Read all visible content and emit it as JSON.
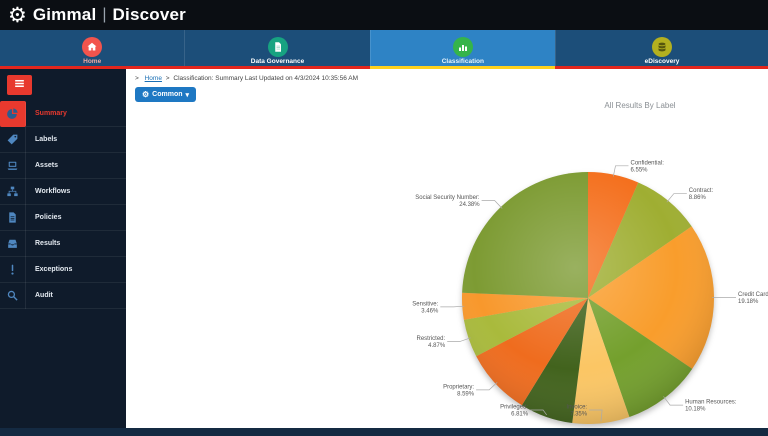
{
  "topbar": {
    "brand_left": "Gimmal",
    "separator": "|",
    "brand_right": "Discover"
  },
  "icons": {
    "gear": "⚙",
    "caret": "▾",
    "crumb_arrow": ">"
  },
  "theme": {
    "topbar_bg": "#0b0e13",
    "nav_bg": "#1c4e79",
    "nav_selected_bg": "#2e83c5",
    "underline_red": "#e3261d",
    "underline_yellow": "#ffd21e",
    "sidebar_bg": "#0f1b2b",
    "accent_red": "#e8392e",
    "button_blue": "#1e78c3"
  },
  "nav": {
    "tabs": [
      {
        "label": "Home",
        "icon": "home-icon",
        "circle_color": "#f2544d",
        "icon_color": "#ffffff",
        "label_color": "#f0a8a1",
        "selected": false
      },
      {
        "label": "Data Governance",
        "icon": "document-icon",
        "circle_color": "#17a381",
        "icon_color": "#ffffff",
        "label_color": "#ffffff",
        "selected": false
      },
      {
        "label": "Classification",
        "icon": "bar-chart-icon",
        "circle_color": "#35b44a",
        "icon_color": "#ffffff",
        "label_color": "#eaf4fb",
        "selected": true
      },
      {
        "label": "eDiscovery",
        "icon": "database-icon",
        "circle_color": "#b3b01f",
        "icon_color": "#56560e",
        "label_color": "#ffffff",
        "selected": false
      }
    ]
  },
  "sidebar": {
    "items": [
      {
        "label": "Summary",
        "icon": "pie-chart-icon",
        "selected": true
      },
      {
        "label": "Labels",
        "icon": "tag-icon",
        "selected": false
      },
      {
        "label": "Assets",
        "icon": "laptop-icon",
        "selected": false
      },
      {
        "label": "Workflows",
        "icon": "sitemap-icon",
        "selected": false
      },
      {
        "label": "Policies",
        "icon": "policy-document-icon",
        "selected": false
      },
      {
        "label": "Results",
        "icon": "inbox-icon",
        "selected": false
      },
      {
        "label": "Exceptions",
        "icon": "exclamation-icon",
        "selected": false
      },
      {
        "label": "Audit",
        "icon": "search-icon",
        "selected": false
      }
    ]
  },
  "breadcrumb": {
    "prefix": ">",
    "home": "Home",
    "separator": ">",
    "text": "Classification: Summary Last Updated on 4/3/2024 10:35:56 AM"
  },
  "toolbar": {
    "common_label": "Common"
  },
  "chart_data": {
    "type": "pie",
    "title": "All Results By Label",
    "legend": "none",
    "slices": [
      {
        "label": "Confidential",
        "pct": "6.55%",
        "value": 6.55,
        "color": "#f4701e"
      },
      {
        "label": "Contract",
        "pct": "8.86%",
        "value": 8.86,
        "color": "#9fae32"
      },
      {
        "label": "Credit Card",
        "pct": "19.18%",
        "value": 19.18,
        "color": "#f99d2c"
      },
      {
        "label": "Human Resources",
        "pct": "10.18%",
        "value": 10.18,
        "color": "#74a02d"
      },
      {
        "label": "Invoice",
        "pct": "7.35%",
        "value": 7.35,
        "color": "#fbc664"
      },
      {
        "label": "Privileged",
        "pct": "6.81%",
        "value": 6.81,
        "color": "#42631d"
      },
      {
        "label": "Proprietary",
        "pct": "8.59%",
        "value": 8.59,
        "color": "#ef6c1e"
      },
      {
        "label": "Restricted",
        "pct": "4.87%",
        "value": 4.87,
        "color": "#a9ba3c"
      },
      {
        "label": "Sensitive",
        "pct": "3.46%",
        "value": 3.46,
        "color": "#f8982c"
      },
      {
        "label": "Social Security Number",
        "pct": "24.38%",
        "value": 24.38,
        "color": "#7d9b33"
      }
    ]
  }
}
